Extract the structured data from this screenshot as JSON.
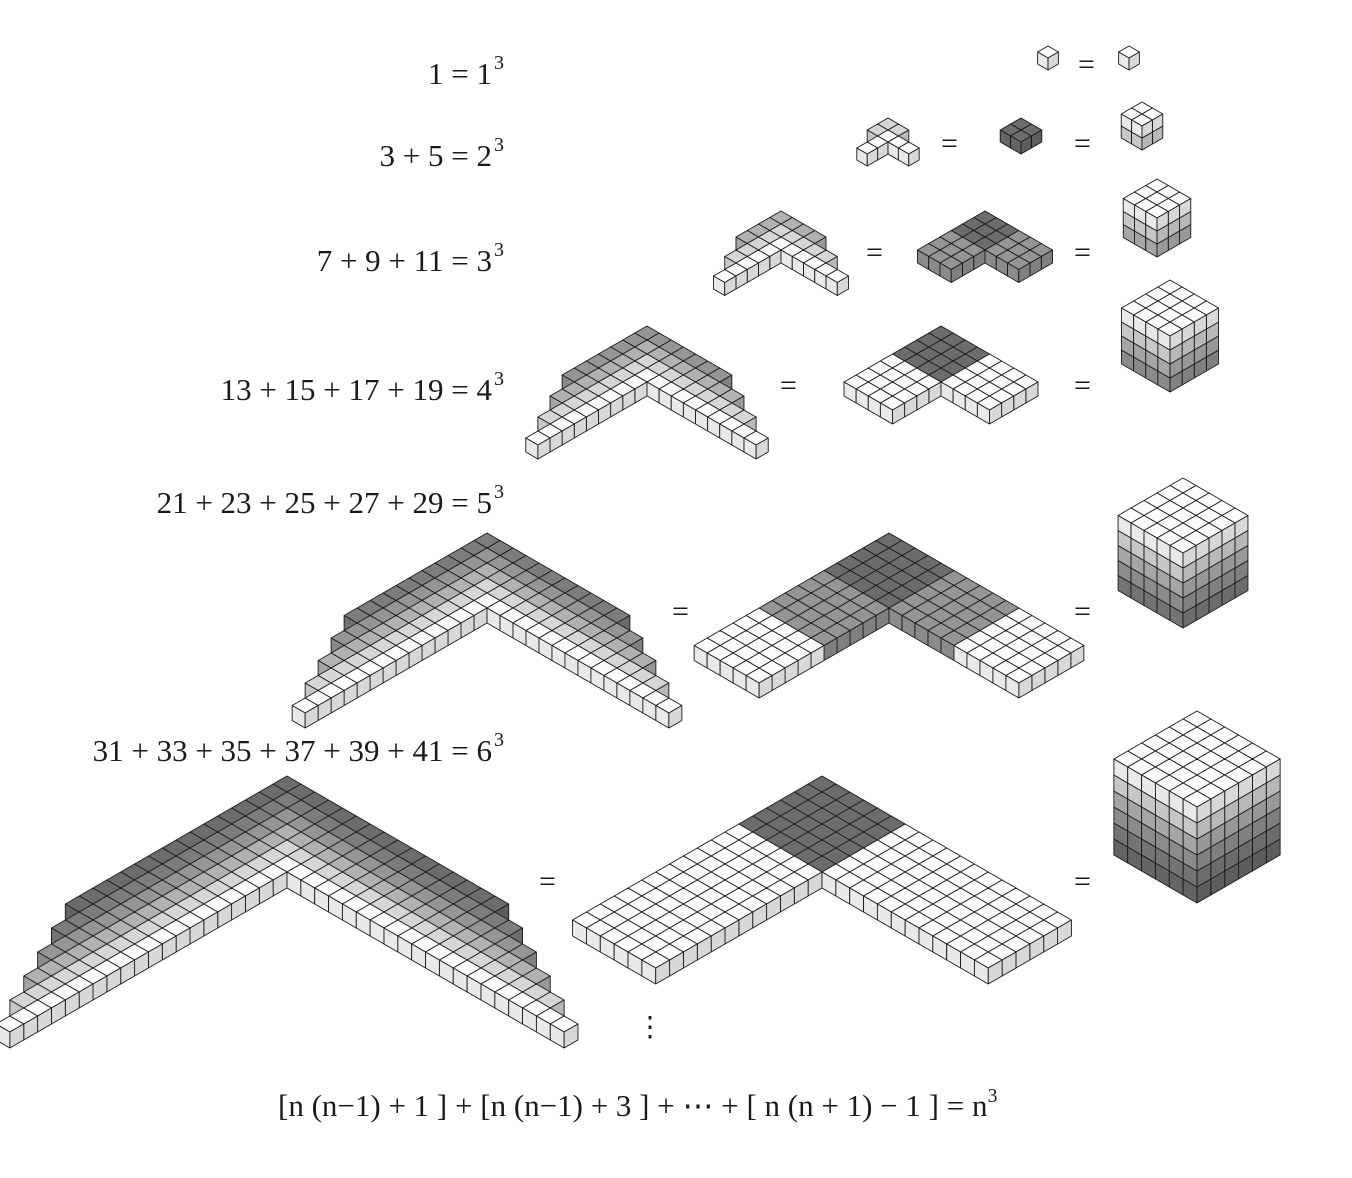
{
  "rows": [
    {
      "n": 1,
      "lhs": "1 = 1",
      "exp": "3",
      "odds": [
        1
      ]
    },
    {
      "n": 2,
      "lhs": "3 + 5 = 2",
      "exp": "3",
      "odds": [
        3,
        5
      ]
    },
    {
      "n": 3,
      "lhs": "7 + 9 + 11 = 3",
      "exp": "3",
      "odds": [
        7,
        9,
        11
      ]
    },
    {
      "n": 4,
      "lhs": "13 + 15 + 17 + 19 = 4",
      "exp": "3",
      "odds": [
        13,
        15,
        17,
        19
      ]
    },
    {
      "n": 5,
      "lhs": "21 + 23 + 25 + 27 + 29 = 5",
      "exp": "3",
      "odds": [
        21,
        23,
        25,
        27,
        29
      ]
    },
    {
      "n": 6,
      "lhs": "31 + 33 + 35 + 37 + 39 + 41 = 6",
      "exp": "3",
      "odds": [
        31,
        33,
        35,
        37,
        39,
        41
      ]
    }
  ],
  "equals_sign": "=",
  "ellipsis": "⋮",
  "general_formula": {
    "text": "[n (n−1) + 1 ] + [n (n−1) + 3 ] + ⋯ + [ n (n + 1) − 1 ] = n",
    "exp": "3"
  },
  "colors": {
    "shades": [
      "#fbfbfb",
      "#d6d6d6",
      "#b1b1b1",
      "#959595",
      "#7d7d7d",
      "#6c6c6c"
    ],
    "edge": "#1a1a1a"
  }
}
